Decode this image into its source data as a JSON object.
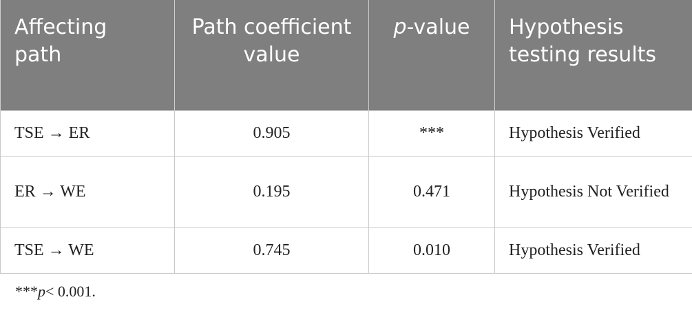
{
  "table": {
    "columns": [
      "Affecting path",
      "Path coefficient value",
      {
        "italic": "p",
        "rest": "-value"
      },
      "Hypothesis testing results"
    ],
    "rows": [
      [
        "TSE → ER",
        "0.905",
        "***",
        "Hypothesis Verified"
      ],
      [
        "ER → WE",
        "0.195",
        "0.471",
        "Hypothesis Not Verified"
      ],
      [
        "TSE → WE",
        "0.745",
        "0.010",
        "Hypothesis Verified"
      ]
    ]
  },
  "footnote": {
    "prefix": "***",
    "italic": "p",
    "rest": "< 0.001."
  }
}
